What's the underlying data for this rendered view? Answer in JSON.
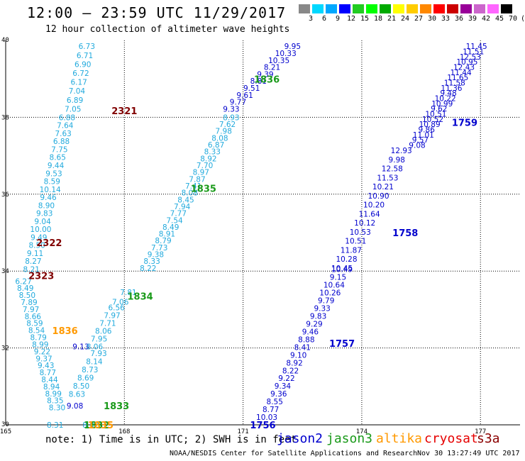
{
  "title": "12:00 — 23:59 UTC 11/29/2017",
  "subtitle": "12 hour collection of altimeter wave heights",
  "note": "note: 1) Time is in UTC; 2) SWH is in feet",
  "credit": "NOAA/NESDIS Center for Satellite Applications and Research",
  "timestamp": "Nov 30 13:27:49 UTC 2017",
  "colors": {
    "jason2": "#0000cd",
    "jason3": "#1a9a1a",
    "altika": "#ff9900",
    "cryosat": "#e60000",
    "s3a": "#8b0000",
    "light_blue": "#22aadd",
    "light_green": "#66ee55",
    "dark_red": "#800000"
  },
  "legend": {
    "jason2": "jason2",
    "jason3": "jason3",
    "altika": "altika",
    "cryosat": "cryosat",
    "s3a": "s3a"
  },
  "scale_bar": {
    "labels": [
      "3",
      "6",
      "9",
      "12",
      "15",
      "18",
      "21",
      "24",
      "27",
      "30",
      "33",
      "36",
      "39",
      "42",
      "45",
      "70",
      "(ft)"
    ],
    "colors": [
      "#888888",
      "#00d8ff",
      "#00a8ff",
      "#0000ff",
      "#22cc22",
      "#00ff00",
      "#00aa00",
      "#ffff00",
      "#ffcc00",
      "#ff8800",
      "#ff0000",
      "#cc0000",
      "#990099",
      "#cc66cc",
      "#ff66ff",
      "#000000"
    ]
  },
  "chart_data": {
    "type": "scatter",
    "xlim": [
      165,
      178
    ],
    "ylim": [
      30,
      40
    ],
    "xticks": [
      165,
      168,
      171,
      174,
      177
    ],
    "yticks": [
      30,
      32,
      34,
      36,
      38,
      40
    ],
    "grid": true,
    "passes": [
      {
        "label": "2321",
        "color": "dark_red",
        "x": 168.0,
        "y": 38.17
      },
      {
        "label": "2322",
        "color": "dark_red",
        "x": 166.1,
        "y": 34.74
      },
      {
        "label": "2323",
        "color": "dark_red",
        "x": 165.9,
        "y": 33.88
      },
      {
        "label": "1836",
        "color": "altika",
        "x": 166.5,
        "y": 32.45
      },
      {
        "label": "1836",
        "color": "jason3",
        "x": 171.6,
        "y": 38.99
      },
      {
        "label": "1835",
        "color": "jason3",
        "x": 170.0,
        "y": 36.15
      },
      {
        "label": "1834",
        "color": "jason3",
        "x": 168.4,
        "y": 33.35
      },
      {
        "label": "1833",
        "color": "jason3",
        "x": 167.8,
        "y": 30.5
      },
      {
        "label": "1832",
        "color": "jason3",
        "x": 167.3,
        "y": 30.0
      },
      {
        "label": "1835",
        "color": "altika",
        "x": 167.4,
        "y": 30.0
      },
      {
        "label": "1759",
        "color": "jason2",
        "x": 176.6,
        "y": 37.87
      },
      {
        "label": "1758",
        "color": "jason2",
        "x": 175.1,
        "y": 35.0
      },
      {
        "label": "1757",
        "color": "jason2",
        "x": 173.5,
        "y": 32.12
      },
      {
        "label": "1756",
        "color": "jason2",
        "x": 171.5,
        "y": 30.0
      }
    ],
    "tracks": [
      {
        "color": "light_blue",
        "x0": 167.05,
        "y0": 39.85,
        "x1": 166.7,
        "y1": 38.22,
        "values": [
          "6.73",
          "6.71",
          "6.90",
          "6.72",
          "6.17",
          "7.04",
          "6.89",
          "7.05"
        ]
      },
      {
        "color": "light_blue",
        "x0": 166.55,
        "y0": 38.0,
        "x1": 165.65,
        "y1": 34.05,
        "values": [
          "6.88",
          "7.64",
          "7.63",
          "6.88",
          "7.75",
          "8.65",
          "9.44",
          "9.53",
          "8.59",
          "10.14",
          "9.46",
          "8.90",
          "9.83",
          "9.04",
          "10.00",
          "9.49",
          "8.50",
          "9.11",
          "8.27",
          "8.21"
        ]
      },
      {
        "color": "light_blue",
        "x0": 165.45,
        "y0": 33.74,
        "x1": 166.3,
        "y1": 30.45,
        "values": [
          "6.27",
          "8.49",
          "8.50",
          "7.89",
          "7.97",
          "8.66",
          "8.59",
          "8.54",
          "8.79",
          "8.99",
          "9.22",
          "9.37",
          "9.43",
          "8.77",
          "8.44",
          "8.94",
          "8.99",
          "8.35",
          "8.30"
        ]
      },
      {
        "color": "light_blue",
        "x0": 166.25,
        "y0": 30.0,
        "x1": 167.15,
        "y1": 30.0,
        "values": [
          "8.31",
          "8.02"
        ]
      },
      {
        "color": "jason2",
        "x0": 166.9,
        "y0": 32.04,
        "x1": 166.75,
        "y1": 30.5,
        "values": [
          "9.13",
          "9.08"
        ]
      },
      {
        "color": "light_blue",
        "x0": 167.35,
        "y0": 31.86,
        "x1": 166.8,
        "y1": 30.8,
        "values": [
          "7.93",
          "8.14",
          "8.73",
          "8.69",
          "8.50",
          "8.63"
        ]
      },
      {
        "color": "light_blue",
        "x0": 167.8,
        "y0": 33.05,
        "x1": 167.25,
        "y1": 32.04,
        "values": [
          "6.56",
          "7.97",
          "7.71",
          "8.06",
          "7.95",
          "8.06"
        ]
      },
      {
        "color": "light_blue",
        "x0": 168.1,
        "y0": 33.45,
        "x1": 167.9,
        "y1": 33.2,
        "values": [
          "7.81",
          "7.06"
        ]
      },
      {
        "color": "light_blue",
        "x0": 170.7,
        "y0": 38.0,
        "x1": 168.6,
        "y1": 34.08,
        "values": [
          "8.93",
          "7.62",
          "7.98",
          "8.08",
          "6.87",
          "8.33",
          "8.92",
          "7.70",
          "8.97",
          "7.87",
          "7.41",
          "8.08",
          "8.45",
          "7.94",
          "7.77",
          "7.54",
          "8.49",
          "8.91",
          "8.79",
          "7.73",
          "9.38",
          "8.33",
          "8.22"
        ]
      },
      {
        "color": "jason2",
        "x0": 172.25,
        "y0": 39.85,
        "x1": 170.7,
        "y1": 38.22,
        "values": [
          "9.95",
          "10.33",
          "10.35",
          "8.21",
          "9.39",
          "8.81",
          "9.51",
          "9.61",
          "9.77",
          "9.33"
        ]
      },
      {
        "color": "jason2",
        "x0": 176.9,
        "y0": 39.85,
        "x1": 175.4,
        "y1": 37.28,
        "values": [
          "11.45",
          "11.51",
          "12.53",
          "10.95",
          "12.43",
          "11.44",
          "11.65",
          "11.58",
          "11.36",
          "9.48",
          "10.22",
          "10.99",
          "9.62",
          "10.51",
          "10.52",
          "10.89",
          "9.86",
          "11.01",
          "9.57",
          "9.08"
        ]
      },
      {
        "color": "jason2",
        "x0": 175.0,
        "y0": 37.14,
        "x1": 173.5,
        "y1": 34.08,
        "values": [
          "12.93",
          "9.98",
          "12.58",
          "11.53",
          "10.21",
          "10.90",
          "10.20",
          "11.64",
          "10.12",
          "10.53",
          "10.51",
          "11.87",
          "10.28",
          "10.45"
        ]
      },
      {
        "color": "jason2",
        "x0": 173.5,
        "y0": 34.05,
        "x1": 171.6,
        "y1": 30.2,
        "values": [
          "10.49",
          "9.15",
          "10.64",
          "10.26",
          "9.79",
          "9.33",
          "9.83",
          "9.29",
          "9.46",
          "8.88",
          "8.41",
          "9.10",
          "8.92",
          "8.22",
          "9.22",
          "9.34",
          "9.36",
          "8.55",
          "8.77",
          "10.03"
        ]
      }
    ]
  }
}
